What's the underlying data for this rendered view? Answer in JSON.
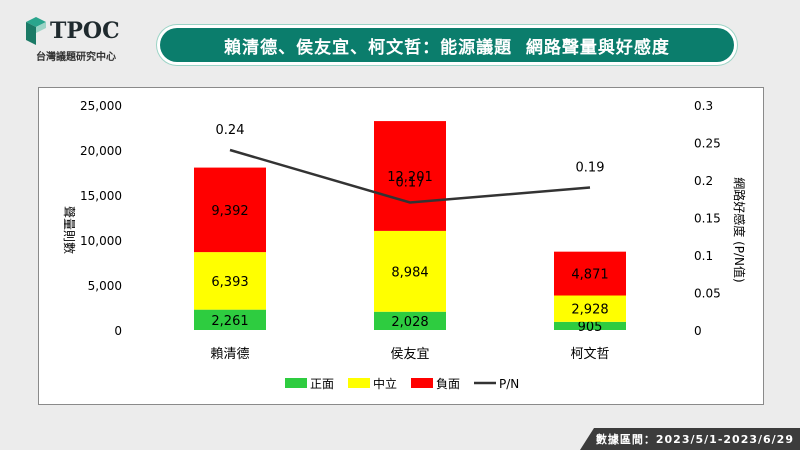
{
  "logo": {
    "brand": "TPOC",
    "subtitle": "台灣議題研究中心"
  },
  "title": "賴清德、侯友宜、柯文哲：能源議題  網路聲量與好感度",
  "footer": "數據區間：2023/5/1-2023/6/29",
  "colors": {
    "brand": "#0b7d6c",
    "positive": "#2ecc40",
    "neutral": "#ffff00",
    "negative": "#ff0000",
    "line": "#333333"
  },
  "chart_data": {
    "type": "bar",
    "stacked": true,
    "categories": [
      "賴清德",
      "侯友宜",
      "柯文哲"
    ],
    "series": [
      {
        "name": "正面",
        "values": [
          2261,
          2028,
          905
        ],
        "labels": [
          "2,261",
          "2,028",
          "905"
        ]
      },
      {
        "name": "中立",
        "values": [
          6393,
          8984,
          2928
        ],
        "labels": [
          "6,393",
          "8,984",
          "2,928"
        ]
      },
      {
        "name": "負面",
        "values": [
          9392,
          12201,
          4871
        ],
        "labels": [
          "9,392",
          "12,201",
          "4,871"
        ]
      }
    ],
    "line_series": {
      "name": "P/N",
      "values": [
        0.24,
        0.17,
        0.19
      ],
      "labels": [
        "0.24",
        "0.17",
        "0.19"
      ]
    },
    "ylabel": "聲量則數",
    "y2label": "網路好感度 (P/N值)",
    "ylim": [
      0,
      25000
    ],
    "y2lim": [
      0,
      0.3
    ],
    "yticks": [
      "0",
      "5,000",
      "10,000",
      "15,000",
      "20,000",
      "25,000"
    ],
    "y2ticks": [
      "0",
      "0.05",
      "0.1",
      "0.15",
      "0.2",
      "0.25",
      "0.3"
    ],
    "legend": [
      "正面",
      "中立",
      "負面",
      "P/N"
    ],
    "legend_position": "bottom",
    "grid": false
  }
}
